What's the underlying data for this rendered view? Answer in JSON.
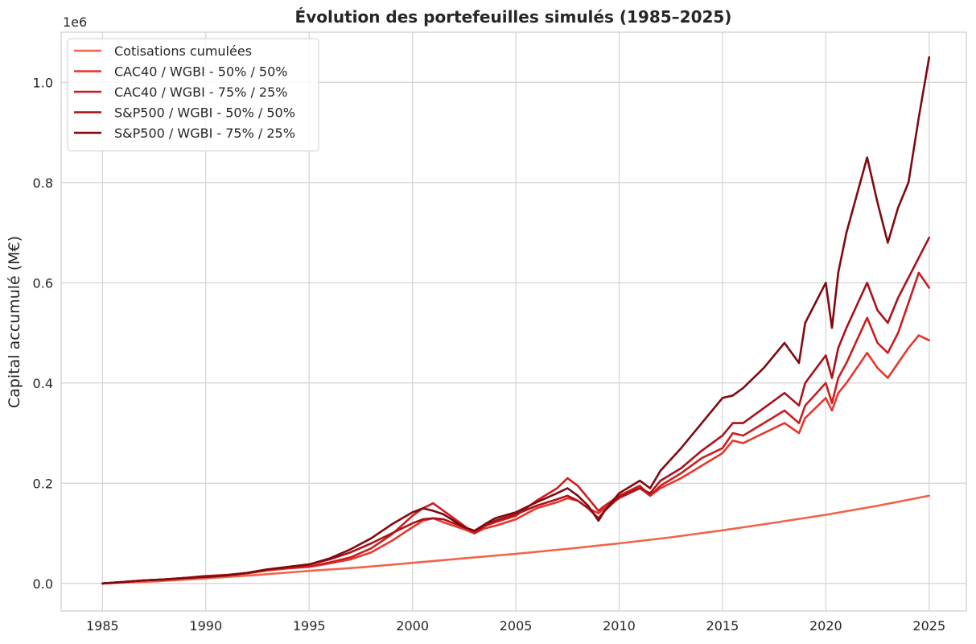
{
  "chart_data": {
    "type": "line",
    "title": "Évolution des portefeuilles simulés (1985–2025)",
    "xlabel": "",
    "ylabel": "Capital accumulé (M€)",
    "y_offset_label": "1e6",
    "xlim": [
      1983,
      2026.8
    ],
    "ylim": [
      -55000,
      1100000
    ],
    "x_ticks": [
      1985,
      1990,
      1995,
      2000,
      2005,
      2010,
      2015,
      2020,
      2025
    ],
    "x_tick_labels": [
      "1985",
      "1990",
      "1995",
      "2000",
      "2005",
      "2010",
      "2015",
      "2020",
      "2025"
    ],
    "y_ticks": [
      0,
      200000,
      400000,
      600000,
      800000,
      1000000
    ],
    "y_tick_labels": [
      "0.0",
      "0.2",
      "0.4",
      "0.6",
      "0.8",
      "1.0"
    ],
    "grid": true,
    "legend_position": "top-left",
    "series": [
      {
        "name": "Cotisations cumulées",
        "color": "#f26449",
        "points": [
          [
            1985,
            0
          ],
          [
            1987.5,
            4000
          ],
          [
            1990,
            10000
          ],
          [
            1992.5,
            17000
          ],
          [
            1995,
            25000
          ],
          [
            1997.5,
            32000
          ],
          [
            2000,
            41000
          ],
          [
            2002.5,
            50000
          ],
          [
            2005,
            59000
          ],
          [
            2007.5,
            69000
          ],
          [
            2010,
            80000
          ],
          [
            2012.5,
            92000
          ],
          [
            2015,
            106000
          ],
          [
            2017.5,
            121000
          ],
          [
            2020,
            137000
          ],
          [
            2022.5,
            155000
          ],
          [
            2025,
            175000
          ]
        ]
      },
      {
        "name": "CAC40 / WGBI - 50% / 50%",
        "color": "#e8362b",
        "points": [
          [
            1985,
            0
          ],
          [
            1986,
            3000
          ],
          [
            1987,
            6000
          ],
          [
            1988,
            8000
          ],
          [
            1989,
            10000
          ],
          [
            1990,
            14000
          ],
          [
            1991,
            16000
          ],
          [
            1992,
            20000
          ],
          [
            1993,
            26000
          ],
          [
            1994,
            30000
          ],
          [
            1995,
            33000
          ],
          [
            1996,
            40000
          ],
          [
            1997,
            48000
          ],
          [
            1998,
            62000
          ],
          [
            1999,
            85000
          ],
          [
            2000,
            112000
          ],
          [
            2000.5,
            125000
          ],
          [
            2001,
            130000
          ],
          [
            2001.5,
            122000
          ],
          [
            2002,
            115000
          ],
          [
            2002.5,
            108000
          ],
          [
            2003,
            100000
          ],
          [
            2003.5,
            110000
          ],
          [
            2004,
            115000
          ],
          [
            2005,
            128000
          ],
          [
            2006,
            150000
          ],
          [
            2007,
            162000
          ],
          [
            2007.5,
            170000
          ],
          [
            2008,
            165000
          ],
          [
            2008.5,
            150000
          ],
          [
            2009,
            140000
          ],
          [
            2009.3,
            150000
          ],
          [
            2010,
            170000
          ],
          [
            2011,
            190000
          ],
          [
            2011.5,
            175000
          ],
          [
            2012,
            190000
          ],
          [
            2013,
            210000
          ],
          [
            2014,
            235000
          ],
          [
            2015,
            260000
          ],
          [
            2015.5,
            285000
          ],
          [
            2016,
            280000
          ],
          [
            2017,
            300000
          ],
          [
            2018,
            320000
          ],
          [
            2018.7,
            300000
          ],
          [
            2019,
            330000
          ],
          [
            2020,
            370000
          ],
          [
            2020.3,
            345000
          ],
          [
            2020.6,
            380000
          ],
          [
            2021,
            400000
          ],
          [
            2022,
            460000
          ],
          [
            2022.5,
            430000
          ],
          [
            2023,
            410000
          ],
          [
            2023.5,
            440000
          ],
          [
            2024,
            470000
          ],
          [
            2024.5,
            495000
          ],
          [
            2025,
            485000
          ]
        ]
      },
      {
        "name": "CAC40 / WGBI - 75% / 25%",
        "color": "#cb1d1f",
        "points": [
          [
            1985,
            0
          ],
          [
            1986,
            3000
          ],
          [
            1987,
            6000
          ],
          [
            1988,
            8000
          ],
          [
            1989,
            11000
          ],
          [
            1990,
            15000
          ],
          [
            1991,
            17000
          ],
          [
            1992,
            21000
          ],
          [
            1993,
            28000
          ],
          [
            1994,
            31000
          ],
          [
            1995,
            34000
          ],
          [
            1996,
            42000
          ],
          [
            1997,
            52000
          ],
          [
            1998,
            70000
          ],
          [
            1999,
            98000
          ],
          [
            2000,
            135000
          ],
          [
            2000.5,
            150000
          ],
          [
            2001,
            160000
          ],
          [
            2001.5,
            145000
          ],
          [
            2002,
            130000
          ],
          [
            2002.5,
            115000
          ],
          [
            2003,
            100000
          ],
          [
            2003.5,
            115000
          ],
          [
            2004,
            122000
          ],
          [
            2005,
            135000
          ],
          [
            2006,
            165000
          ],
          [
            2007,
            190000
          ],
          [
            2007.5,
            210000
          ],
          [
            2008,
            195000
          ],
          [
            2008.5,
            170000
          ],
          [
            2009,
            145000
          ],
          [
            2009.3,
            155000
          ],
          [
            2010,
            175000
          ],
          [
            2011,
            195000
          ],
          [
            2011.5,
            175000
          ],
          [
            2012,
            195000
          ],
          [
            2013,
            220000
          ],
          [
            2014,
            250000
          ],
          [
            2015,
            270000
          ],
          [
            2015.5,
            300000
          ],
          [
            2016,
            295000
          ],
          [
            2017,
            320000
          ],
          [
            2018,
            345000
          ],
          [
            2018.7,
            320000
          ],
          [
            2019,
            355000
          ],
          [
            2020,
            400000
          ],
          [
            2020.3,
            360000
          ],
          [
            2020.6,
            410000
          ],
          [
            2021,
            440000
          ],
          [
            2022,
            530000
          ],
          [
            2022.5,
            480000
          ],
          [
            2023,
            460000
          ],
          [
            2023.5,
            500000
          ],
          [
            2024,
            560000
          ],
          [
            2024.5,
            620000
          ],
          [
            2025,
            590000
          ]
        ]
      },
      {
        "name": "S&P500 / WGBI - 50% / 50%",
        "color": "#a8121b",
        "points": [
          [
            1985,
            0
          ],
          [
            1986,
            3000
          ],
          [
            1987,
            6000
          ],
          [
            1988,
            8000
          ],
          [
            1989,
            11000
          ],
          [
            1990,
            13000
          ],
          [
            1991,
            16000
          ],
          [
            1992,
            21000
          ],
          [
            1993,
            28000
          ],
          [
            1994,
            33000
          ],
          [
            1995,
            38000
          ],
          [
            1996,
            48000
          ],
          [
            1997,
            62000
          ],
          [
            1998,
            80000
          ],
          [
            1999,
            100000
          ],
          [
            2000,
            120000
          ],
          [
            2000.5,
            128000
          ],
          [
            2001,
            130000
          ],
          [
            2001.5,
            128000
          ],
          [
            2002,
            120000
          ],
          [
            2002.5,
            112000
          ],
          [
            2003,
            105000
          ],
          [
            2003.5,
            115000
          ],
          [
            2004,
            125000
          ],
          [
            2005,
            138000
          ],
          [
            2006,
            155000
          ],
          [
            2007,
            168000
          ],
          [
            2007.5,
            175000
          ],
          [
            2008,
            165000
          ],
          [
            2008.5,
            150000
          ],
          [
            2009,
            130000
          ],
          [
            2009.3,
            145000
          ],
          [
            2010,
            172000
          ],
          [
            2011,
            190000
          ],
          [
            2011.5,
            180000
          ],
          [
            2012,
            205000
          ],
          [
            2013,
            230000
          ],
          [
            2014,
            265000
          ],
          [
            2015,
            295000
          ],
          [
            2015.5,
            320000
          ],
          [
            2016,
            320000
          ],
          [
            2017,
            350000
          ],
          [
            2018,
            380000
          ],
          [
            2018.7,
            355000
          ],
          [
            2019,
            400000
          ],
          [
            2020,
            455000
          ],
          [
            2020.3,
            410000
          ],
          [
            2020.6,
            470000
          ],
          [
            2021,
            510000
          ],
          [
            2022,
            600000
          ],
          [
            2022.5,
            545000
          ],
          [
            2023,
            520000
          ],
          [
            2023.5,
            570000
          ],
          [
            2024,
            610000
          ],
          [
            2024.5,
            650000
          ],
          [
            2025,
            690000
          ]
        ]
      },
      {
        "name": "S&P500 / WGBI - 75% / 25%",
        "color": "#7f0911",
        "points": [
          [
            1985,
            0
          ],
          [
            1986,
            3000
          ],
          [
            1987,
            6000
          ],
          [
            1988,
            8000
          ],
          [
            1989,
            11000
          ],
          [
            1990,
            13000
          ],
          [
            1991,
            16000
          ],
          [
            1992,
            21000
          ],
          [
            1993,
            28000
          ],
          [
            1994,
            33000
          ],
          [
            1995,
            38000
          ],
          [
            1996,
            50000
          ],
          [
            1997,
            68000
          ],
          [
            1998,
            90000
          ],
          [
            1999,
            118000
          ],
          [
            2000,
            142000
          ],
          [
            2000.5,
            150000
          ],
          [
            2001,
            145000
          ],
          [
            2001.5,
            138000
          ],
          [
            2002,
            125000
          ],
          [
            2002.5,
            112000
          ],
          [
            2003,
            105000
          ],
          [
            2003.5,
            118000
          ],
          [
            2004,
            130000
          ],
          [
            2005,
            142000
          ],
          [
            2006,
            162000
          ],
          [
            2007,
            180000
          ],
          [
            2007.5,
            190000
          ],
          [
            2008,
            175000
          ],
          [
            2008.5,
            155000
          ],
          [
            2009,
            125000
          ],
          [
            2009.3,
            145000
          ],
          [
            2010,
            180000
          ],
          [
            2011,
            205000
          ],
          [
            2011.5,
            190000
          ],
          [
            2012,
            225000
          ],
          [
            2013,
            270000
          ],
          [
            2014,
            320000
          ],
          [
            2015,
            370000
          ],
          [
            2015.5,
            375000
          ],
          [
            2016,
            390000
          ],
          [
            2017,
            430000
          ],
          [
            2018,
            480000
          ],
          [
            2018.7,
            440000
          ],
          [
            2019,
            520000
          ],
          [
            2020,
            600000
          ],
          [
            2020.3,
            510000
          ],
          [
            2020.6,
            620000
          ],
          [
            2021,
            700000
          ],
          [
            2022,
            850000
          ],
          [
            2022.5,
            760000
          ],
          [
            2023,
            680000
          ],
          [
            2023.5,
            750000
          ],
          [
            2024,
            800000
          ],
          [
            2024.5,
            930000
          ],
          [
            2025,
            1050000
          ]
        ]
      }
    ]
  }
}
